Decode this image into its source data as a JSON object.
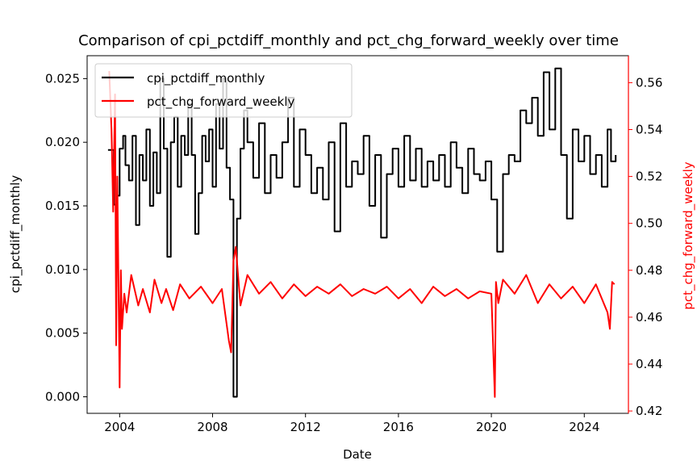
{
  "chart_data": {
    "type": "line",
    "title": "Comparison of cpi_pctdiff_monthly and pct_chg_forward_weekly over time",
    "xlabel": "Date",
    "ylabel_left": "cpi_pctdiff_monthly",
    "ylabel_right": "pct_chg_forward_weekly",
    "xlim": [
      2002.6,
      2025.9
    ],
    "ylim_left": [
      -0.0013,
      0.0268
    ],
    "ylim_right": [
      0.419,
      0.5715
    ],
    "x_ticks": [
      2004,
      2008,
      2012,
      2016,
      2020,
      2024
    ],
    "x_tick_labels": [
      "2004",
      "2008",
      "2012",
      "2016",
      "2020",
      "2024"
    ],
    "y_left_ticks": [
      0.0,
      0.005,
      0.01,
      0.015,
      0.02,
      0.025
    ],
    "y_left_tick_labels": [
      "0.000",
      "0.005",
      "0.010",
      "0.015",
      "0.020",
      "0.025"
    ],
    "y_right_ticks": [
      0.42,
      0.44,
      0.46,
      0.48,
      0.5,
      0.52,
      0.54,
      0.56
    ],
    "y_right_tick_labels": [
      "0.42",
      "0.44",
      "0.46",
      "0.48",
      "0.50",
      "0.52",
      "0.54",
      "0.56"
    ],
    "grid": false,
    "legend_position": "top-left",
    "series": [
      {
        "name": "cpi_pctdiff_monthly",
        "axis": "left",
        "color": "#000000",
        "step": true,
        "x": [
          2003.5,
          2003.75,
          2003.9,
          2004.0,
          2004.15,
          2004.25,
          2004.4,
          2004.55,
          2004.7,
          2004.85,
          2005.0,
          2005.15,
          2005.3,
          2005.45,
          2005.6,
          2005.75,
          2005.9,
          2006.05,
          2006.2,
          2006.35,
          2006.5,
          2006.65,
          2006.8,
          2006.95,
          2007.1,
          2007.25,
          2007.4,
          2007.55,
          2007.7,
          2007.85,
          2008.0,
          2008.15,
          2008.3,
          2008.45,
          2008.6,
          2008.75,
          2008.9,
          2009.05,
          2009.2,
          2009.35,
          2009.5,
          2009.75,
          2010.0,
          2010.25,
          2010.5,
          2010.75,
          2011.0,
          2011.25,
          2011.5,
          2011.75,
          2012.0,
          2012.25,
          2012.5,
          2012.75,
          2013.0,
          2013.25,
          2013.5,
          2013.75,
          2014.0,
          2014.25,
          2014.5,
          2014.75,
          2015.0,
          2015.25,
          2015.5,
          2015.75,
          2016.0,
          2016.25,
          2016.5,
          2016.75,
          2017.0,
          2017.25,
          2017.5,
          2017.75,
          2018.0,
          2018.25,
          2018.5,
          2018.75,
          2019.0,
          2019.25,
          2019.5,
          2019.75,
          2020.0,
          2020.25,
          2020.5,
          2020.75,
          2021.0,
          2021.25,
          2021.5,
          2021.75,
          2022.0,
          2022.25,
          2022.5,
          2022.75,
          2023.0,
          2023.25,
          2023.5,
          2023.75,
          2024.0,
          2024.25,
          2024.5,
          2024.75,
          2025.0,
          2025.15,
          2025.35
        ],
        "y": [
          0.0194,
          0.0151,
          0.0158,
          0.0195,
          0.0205,
          0.0182,
          0.017,
          0.0205,
          0.0135,
          0.019,
          0.017,
          0.021,
          0.015,
          0.0192,
          0.016,
          0.025,
          0.0195,
          0.011,
          0.02,
          0.022,
          0.0165,
          0.0205,
          0.019,
          0.023,
          0.019,
          0.0128,
          0.016,
          0.0205,
          0.0185,
          0.021,
          0.0165,
          0.023,
          0.0195,
          0.025,
          0.018,
          0.0155,
          0.0,
          0.014,
          0.0195,
          0.0225,
          0.02,
          0.0172,
          0.0215,
          0.016,
          0.019,
          0.0172,
          0.02,
          0.0235,
          0.0165,
          0.021,
          0.019,
          0.016,
          0.018,
          0.0155,
          0.02,
          0.013,
          0.0215,
          0.0165,
          0.0185,
          0.0175,
          0.0205,
          0.015,
          0.019,
          0.0125,
          0.0175,
          0.0195,
          0.0165,
          0.0205,
          0.017,
          0.0195,
          0.0165,
          0.0185,
          0.017,
          0.019,
          0.0165,
          0.02,
          0.018,
          0.016,
          0.0195,
          0.0175,
          0.017,
          0.0185,
          0.0155,
          0.0114,
          0.0175,
          0.019,
          0.0185,
          0.0225,
          0.0215,
          0.0235,
          0.0205,
          0.0255,
          0.021,
          0.0258,
          0.019,
          0.014,
          0.021,
          0.0185,
          0.0205,
          0.0175,
          0.019,
          0.0165,
          0.021,
          0.0185,
          0.019
        ]
      },
      {
        "name": "pct_chg_forward_weekly",
        "axis": "right",
        "color": "#ff0000",
        "step": false,
        "x": [
          2003.55,
          2003.65,
          2003.72,
          2003.8,
          2003.85,
          2003.9,
          2004.0,
          2004.05,
          2004.1,
          2004.2,
          2004.3,
          2004.5,
          2004.8,
          2005.0,
          2005.3,
          2005.5,
          2005.8,
          2006.0,
          2006.3,
          2006.6,
          2007.0,
          2007.5,
          2008.0,
          2008.4,
          2008.7,
          2008.8,
          2008.9,
          2009.0,
          2009.2,
          2009.5,
          2010.0,
          2010.5,
          2011.0,
          2011.5,
          2012.0,
          2012.5,
          2013.0,
          2013.5,
          2014.0,
          2014.5,
          2015.0,
          2015.5,
          2016.0,
          2016.5,
          2017.0,
          2017.5,
          2018.0,
          2018.5,
          2019.0,
          2019.5,
          2020.0,
          2020.15,
          2020.2,
          2020.3,
          2020.5,
          2021.0,
          2021.5,
          2022.0,
          2022.5,
          2023.0,
          2023.5,
          2024.0,
          2024.5,
          2025.0,
          2025.1,
          2025.2,
          2025.3
        ],
        "y": [
          0.565,
          0.54,
          0.505,
          0.555,
          0.448,
          0.52,
          0.43,
          0.48,
          0.455,
          0.47,
          0.462,
          0.478,
          0.465,
          0.472,
          0.462,
          0.476,
          0.466,
          0.472,
          0.463,
          0.474,
          0.468,
          0.473,
          0.466,
          0.472,
          0.45,
          0.445,
          0.484,
          0.49,
          0.465,
          0.478,
          0.47,
          0.475,
          0.468,
          0.474,
          0.469,
          0.473,
          0.47,
          0.474,
          0.469,
          0.472,
          0.47,
          0.473,
          0.468,
          0.472,
          0.466,
          0.473,
          0.469,
          0.472,
          0.468,
          0.471,
          0.47,
          0.426,
          0.475,
          0.466,
          0.476,
          0.47,
          0.478,
          0.466,
          0.474,
          0.468,
          0.473,
          0.466,
          0.474,
          0.462,
          0.455,
          0.475,
          0.474
        ]
      }
    ]
  }
}
